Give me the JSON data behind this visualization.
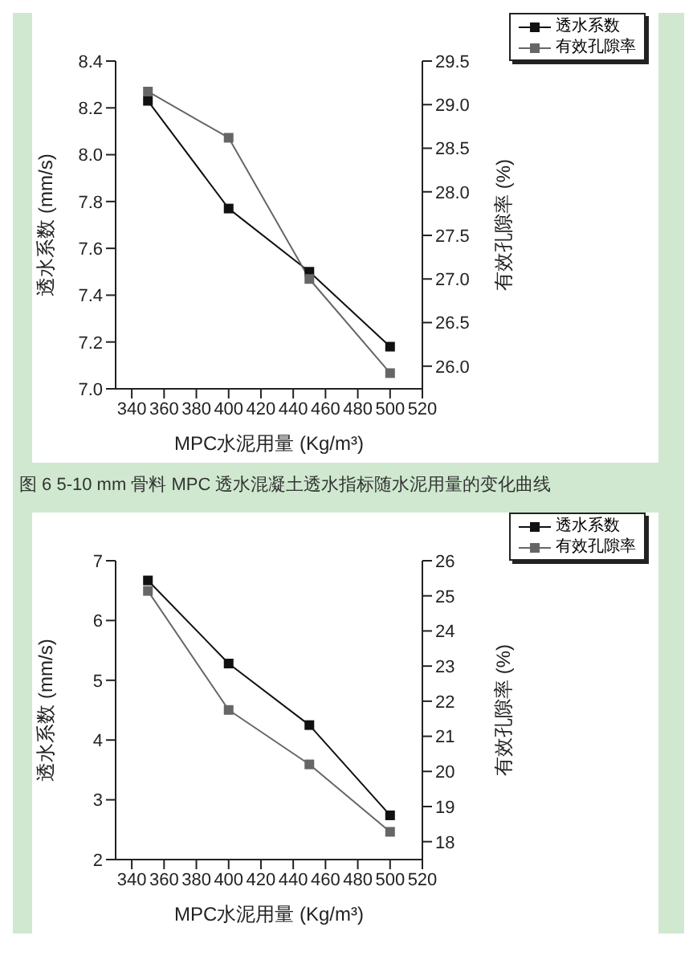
{
  "chart_data": [
    {
      "type": "line",
      "xlabel": "MPC水泥用量 (Kg/m³)",
      "ylabel": "透水系数 (mm/s)",
      "y2label": "有效孔隙率 (%)",
      "x": [
        350,
        400,
        450,
        500
      ],
      "xlim": [
        330,
        520
      ],
      "xticks": [
        340,
        360,
        380,
        400,
        420,
        440,
        460,
        480,
        500,
        520
      ],
      "ylim": [
        7.0,
        8.4
      ],
      "yticks": [
        {
          "value": 7,
          "label": "7.0"
        },
        7.2,
        7.4,
        7.6,
        7.8,
        {
          "value": 8,
          "label": "8.0"
        },
        8.2,
        8.4
      ],
      "y2lim": [
        25.74,
        29.5
      ],
      "y2ticks": [
        {
          "value": 26,
          "label": "26.0"
        },
        26.5,
        {
          "value": 27,
          "label": "27.0"
        },
        27.5,
        {
          "value": 28,
          "label": "28.0"
        },
        28.5,
        {
          "value": 29,
          "label": "29.0"
        },
        29.5
      ],
      "marker": "square",
      "legend": "top right",
      "series": [
        {
          "name": "透水系数",
          "color": "#111111",
          "values": [
            8.23,
            7.77,
            7.5,
            7.18
          ]
        },
        {
          "name": "有效孔隙率",
          "color": "#666666",
          "axis": "y2",
          "values": [
            29.15,
            28.62,
            27.0,
            25.92
          ]
        }
      ],
      "annotations": [
        "图 6 5-10 mm 骨料 MPC 透水混凝土透水指标随水泥用量的变化曲线"
      ]
    },
    {
      "type": "line",
      "xlabel": "MPC水泥用量 (Kg/m³)",
      "ylabel": "透水系数 (mm/s)",
      "y2label": "有效孔隙率 (%)",
      "x": [
        350,
        400,
        450,
        500
      ],
      "xlim": [
        330,
        520
      ],
      "xticks": [
        340,
        360,
        380,
        400,
        420,
        440,
        460,
        480,
        500,
        520
      ],
      "ylim": [
        2,
        7
      ],
      "yticks": [
        2,
        3,
        4,
        5,
        6,
        7
      ],
      "y2lim": [
        17.49,
        26
      ],
      "y2ticks": [
        18,
        19,
        20,
        21,
        22,
        23,
        24,
        25,
        26
      ],
      "marker": "square",
      "legend": "top right",
      "series": [
        {
          "name": "透水系数",
          "color": "#111111",
          "values": [
            6.67,
            5.28,
            4.25,
            2.74
          ]
        },
        {
          "name": "有效孔隙率",
          "color": "#666666",
          "axis": "y2",
          "values": [
            25.14,
            21.75,
            20.2,
            18.28
          ]
        }
      ]
    }
  ]
}
